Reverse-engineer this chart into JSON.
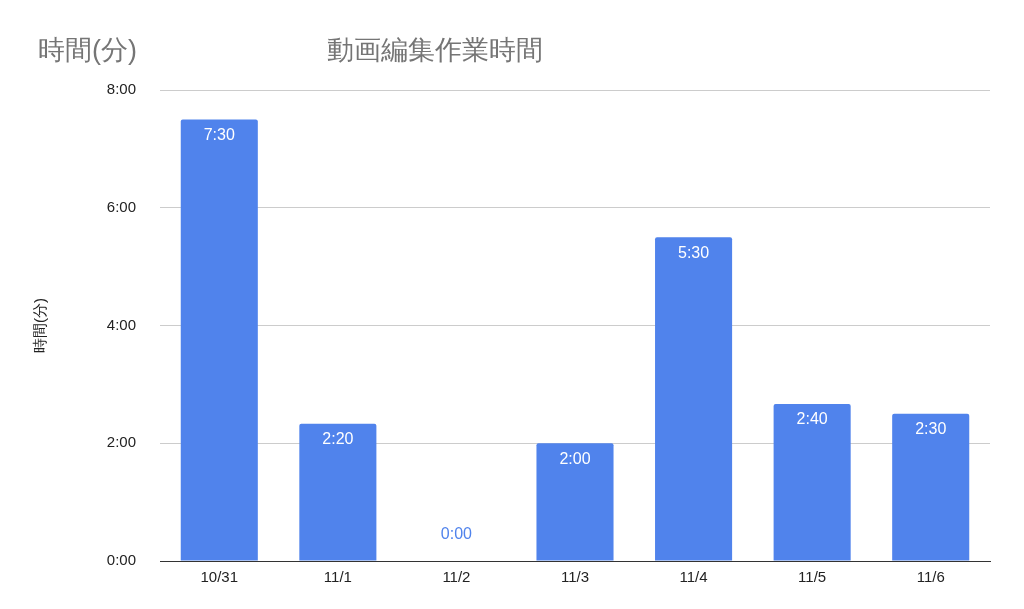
{
  "chart_data": {
    "type": "bar",
    "title": "動画編集作業時間",
    "ylabel": "時間(分)",
    "annotations": [
      "時間(分)"
    ],
    "categories": [
      "10/31",
      "11/1",
      "11/2",
      "11/3",
      "11/4",
      "11/5",
      "11/6"
    ],
    "values": [
      7.5,
      2.3333,
      0,
      2,
      5.5,
      2.6667,
      2.5
    ],
    "value_labels": [
      "7:30",
      "2:20",
      "0:00",
      "2:00",
      "5:30",
      "2:40",
      "2:30"
    ],
    "color": "#5083ec",
    "ylim": [
      0,
      8
    ],
    "yticks": [
      {
        "value": 0,
        "label": "0:00"
      },
      {
        "value": 2,
        "label": "2:00"
      },
      {
        "value": 4,
        "label": "4:00"
      },
      {
        "value": 6,
        "label": "6:00"
      },
      {
        "value": 8,
        "label": "8:00"
      }
    ],
    "grid": "y",
    "legend": false
  }
}
